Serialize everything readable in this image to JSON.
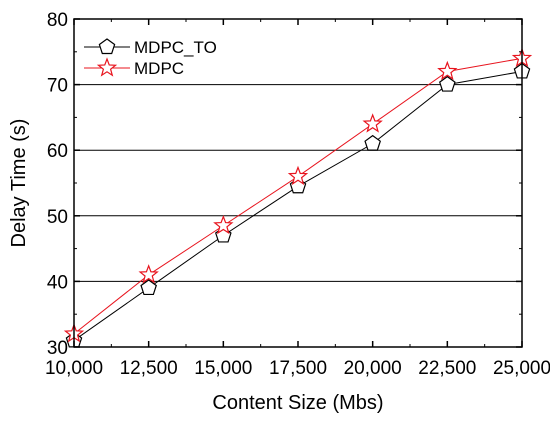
{
  "chart_data": {
    "type": "line",
    "xlabel": "Content Size (Mbs)",
    "ylabel": "Delay Time (s)",
    "x": [
      10000,
      12500,
      15000,
      17500,
      20000,
      22500,
      25000
    ],
    "x_tick_labels": [
      "10,000",
      "12,500",
      "15,000",
      "17,500",
      "20,000",
      "22,500",
      "25,000"
    ],
    "y_ticks": [
      30,
      40,
      50,
      60,
      70,
      80
    ],
    "xlim": [
      10000,
      25000
    ],
    "ylim": [
      30,
      80
    ],
    "grid": "horizontal",
    "legend_position": "top-left",
    "series": [
      {
        "name": "MDPC_TO",
        "marker": "pentagon",
        "color": "#000000",
        "values": [
          31,
          39,
          47,
          54.5,
          61,
          70,
          72
        ]
      },
      {
        "name": "MDPC",
        "marker": "star",
        "color": "#e8141e",
        "values": [
          32,
          41,
          48.5,
          56,
          64,
          72,
          74
        ]
      }
    ]
  }
}
